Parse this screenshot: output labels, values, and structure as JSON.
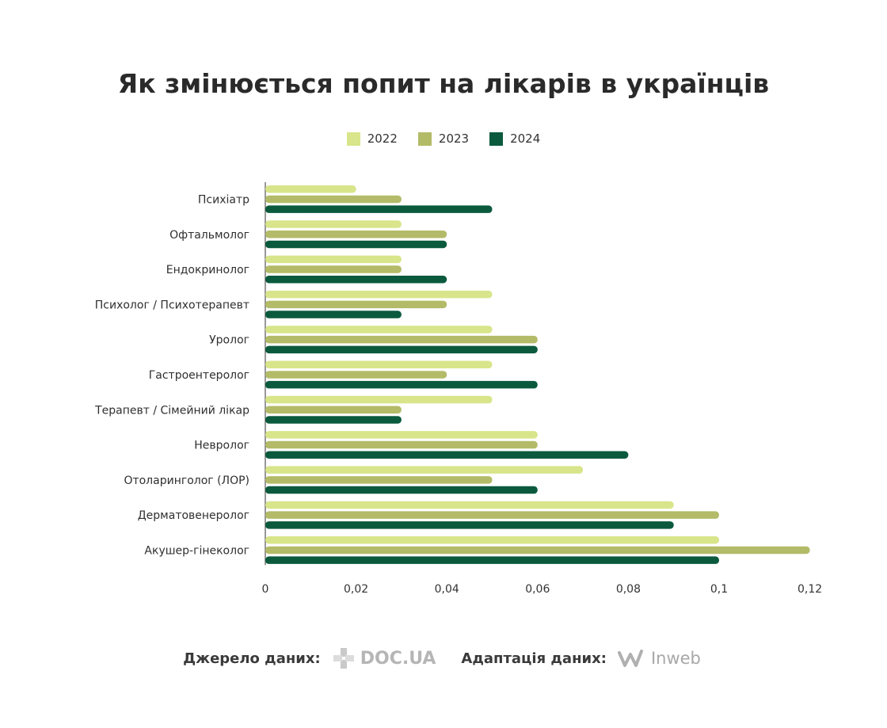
{
  "title": "Як змінюється попит на лікарів в українців",
  "chart_data": {
    "type": "bar",
    "orientation": "horizontal",
    "categories": [
      "Психіатр",
      "Офтальмолог",
      "Ендокринолог",
      "Психолог / Психотерапевт",
      "Уролог",
      "Гастроентеролог",
      "Терапевт / Сімейний лікар",
      "Невролог",
      "Отоларинголог (ЛОР)",
      "Дерматовенеролог",
      "Акушер-гінеколог"
    ],
    "series": [
      {
        "name": "2022",
        "color": "#d8e58a",
        "values": [
          0.02,
          0.03,
          0.03,
          0.05,
          0.05,
          0.05,
          0.05,
          0.06,
          0.07,
          0.09,
          0.1
        ]
      },
      {
        "name": "2023",
        "color": "#b3bb68",
        "values": [
          0.03,
          0.04,
          0.03,
          0.04,
          0.06,
          0.04,
          0.03,
          0.06,
          0.05,
          0.1,
          0.12
        ]
      },
      {
        "name": "2024",
        "color": "#0b5a3e",
        "values": [
          0.05,
          0.04,
          0.04,
          0.03,
          0.06,
          0.06,
          0.03,
          0.08,
          0.06,
          0.09,
          0.1
        ]
      }
    ],
    "xlim": [
      0,
      0.12
    ],
    "xticks": [
      0,
      0.02,
      0.04,
      0.06,
      0.08,
      0.1,
      0.12
    ],
    "xtick_labels": [
      "0",
      "0,02",
      "0,04",
      "0,06",
      "0,08",
      "0,1",
      "0,12"
    ],
    "legend_position": "top-center",
    "grid": false
  },
  "footer": {
    "source_label": "Джерело даних:",
    "source_logo": "DOC.UA",
    "adaptation_label": "Адаптація даних:",
    "adaptation_logo": "Inweb"
  }
}
